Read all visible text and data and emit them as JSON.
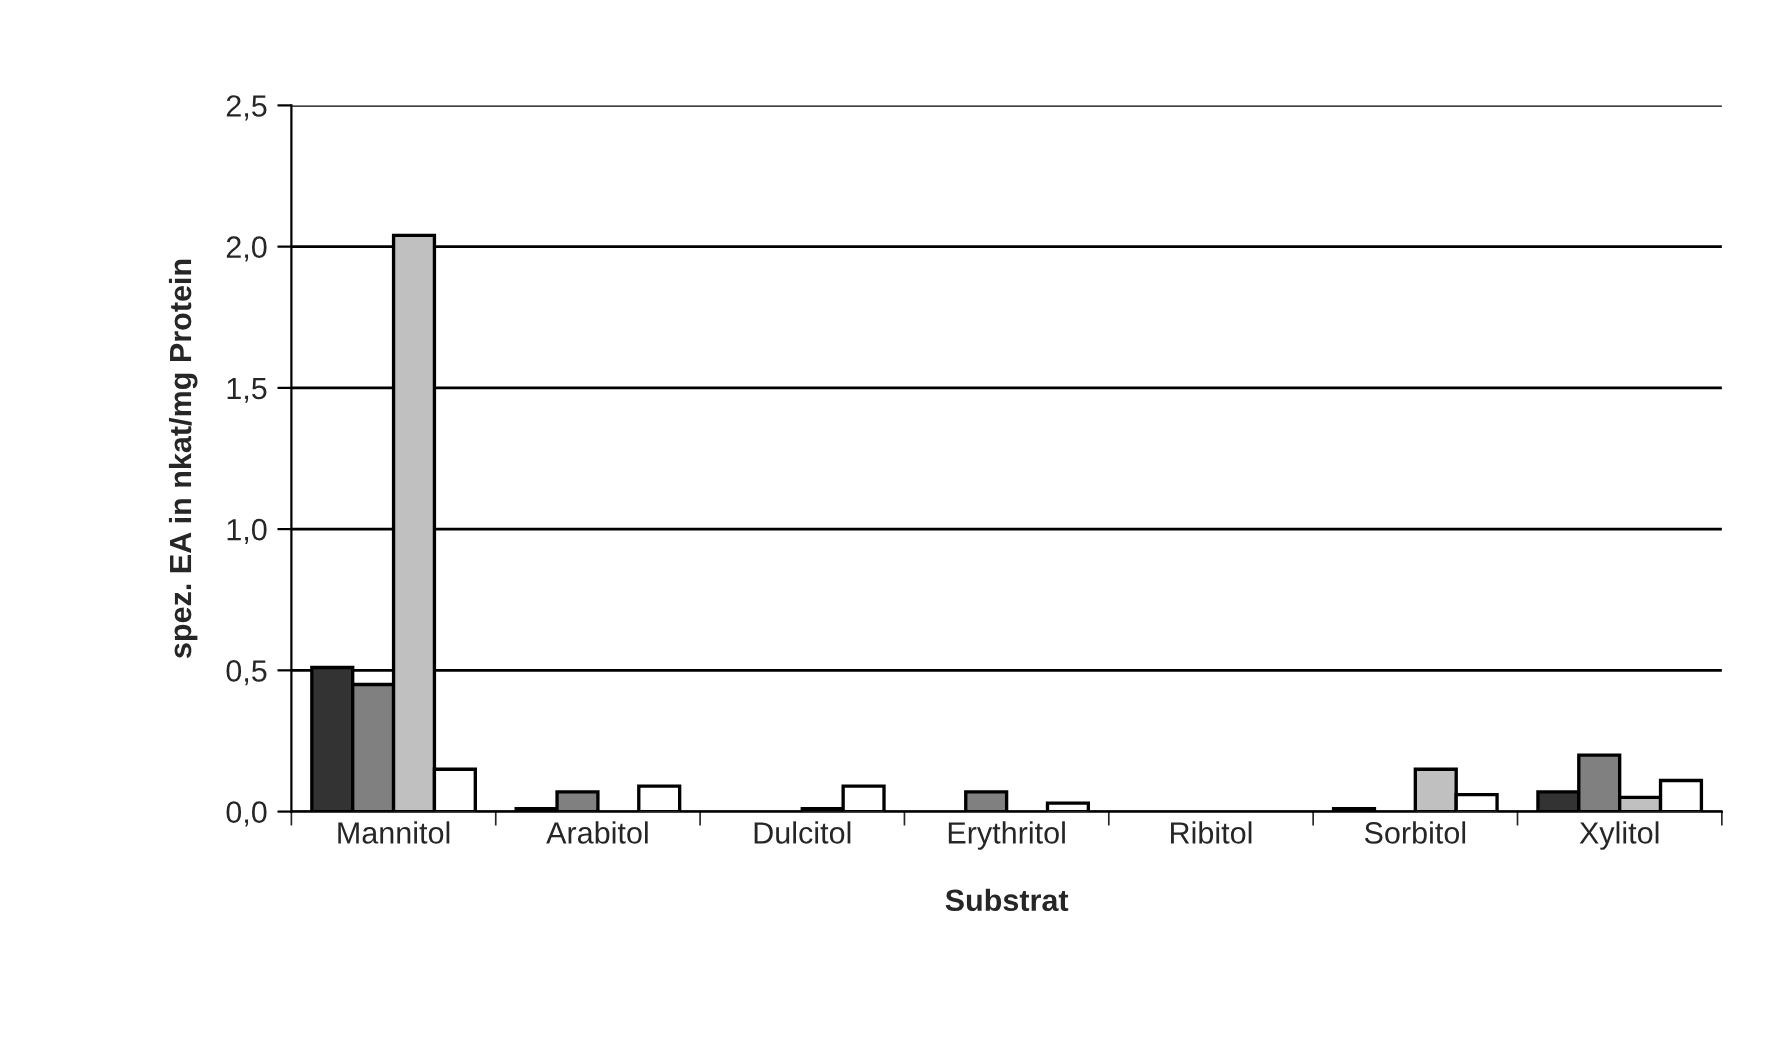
{
  "chart_data": {
    "type": "bar",
    "xlabel": "Substrat",
    "ylabel": "spez. EA in nkat/mg Protein",
    "categories": [
      "Mannitol",
      "Arabitol",
      "Dulcitol",
      "Erythritol",
      "Ribitol",
      "Sorbitol",
      "Xylitol"
    ],
    "series": [
      {
        "color": "#333333",
        "values": [
          0.51,
          0.01,
          null,
          null,
          null,
          0.01,
          0.07
        ]
      },
      {
        "color": "#808080",
        "values": [
          0.45,
          0.07,
          null,
          0.07,
          null,
          null,
          0.2
        ]
      },
      {
        "color": "#c0c0c0",
        "values": [
          2.04,
          null,
          0.01,
          null,
          null,
          0.15,
          0.05
        ]
      },
      {
        "color": "#ffffff",
        "values": [
          0.15,
          0.09,
          0.09,
          0.03,
          null,
          0.06,
          0.11
        ]
      }
    ],
    "ylim": [
      0,
      2.5
    ],
    "yticks": [
      {
        "value": 0,
        "label": "0,0"
      },
      {
        "value": 0.5,
        "label": "0,5"
      },
      {
        "value": 1,
        "label": "1,0"
      },
      {
        "value": 1.5,
        "label": "1,5"
      },
      {
        "value": 2,
        "label": "2,0"
      },
      {
        "value": 2.5,
        "label": "2,5"
      }
    ],
    "grid": "y",
    "legend": false
  }
}
